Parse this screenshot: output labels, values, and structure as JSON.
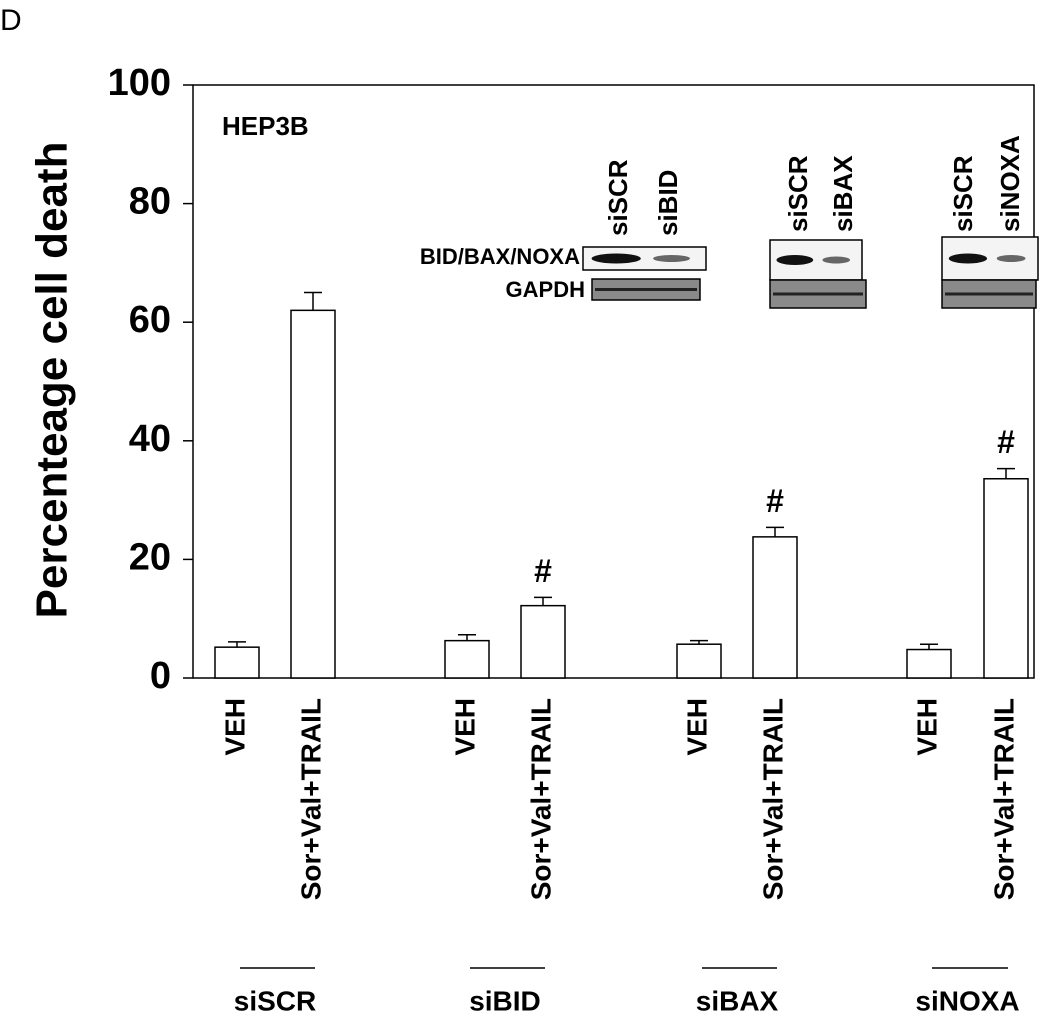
{
  "chart_data": {
    "type": "bar",
    "panel_label": "D",
    "annotation": "HEP3B",
    "y_label": "Percenteage cell death",
    "categories": [
      "VEH",
      "Sor+Val+TRAIL",
      "VEH",
      "Sor+Val+TRAIL",
      "VEH",
      "Sor+Val+TRAIL",
      "VEH",
      "Sor+Val+TRAIL"
    ],
    "groups": [
      "siSCR",
      "siBID",
      "siBAX",
      "siNOXA"
    ],
    "values": [
      5.2,
      62,
      6.3,
      12.2,
      5.7,
      23.8,
      4.8,
      33.6
    ],
    "errors": [
      0.9,
      3.0,
      1.0,
      1.4,
      0.6,
      1.6,
      0.9,
      1.7
    ],
    "significance": [
      null,
      null,
      null,
      "#",
      null,
      "#",
      null,
      "#"
    ],
    "color": "#ffffff",
    "ylim": [
      0,
      100
    ],
    "yticks": [
      0,
      20,
      40,
      60,
      80,
      100
    ],
    "blots": [
      {
        "lanes": [
          "siSCR",
          "siBID"
        ]
      },
      {
        "lanes": [
          "siSCR",
          "siBAX"
        ]
      },
      {
        "lanes": [
          "siSCR",
          "siNOXA"
        ]
      }
    ],
    "blot_labels": [
      "BID/BAX/NOXA",
      "GAPDH"
    ]
  }
}
